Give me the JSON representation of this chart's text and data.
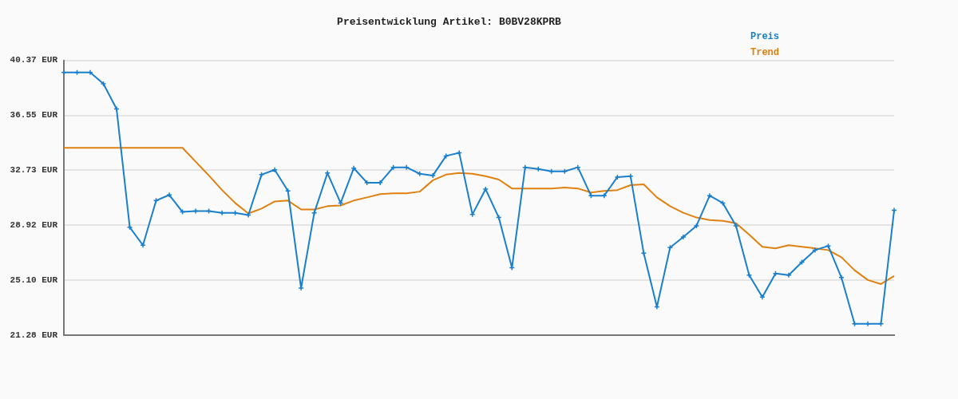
{
  "chart_data": {
    "type": "line",
    "title": "Preisentwicklung Artikel: B0BV28KPRB",
    "categories": [
      null,
      null,
      null,
      null,
      null,
      null,
      null,
      null,
      null,
      null,
      null,
      null,
      null,
      null,
      null,
      null,
      null,
      null,
      null,
      null,
      null,
      null,
      null,
      null,
      null,
      null,
      null,
      null,
      null,
      null,
      null,
      null,
      null,
      null,
      null,
      null,
      null,
      null,
      null,
      null,
      null,
      null,
      null,
      null,
      null,
      null,
      null,
      null,
      null,
      null,
      null,
      null,
      null,
      null,
      null,
      null,
      null,
      null,
      null,
      null,
      null,
      null,
      null,
      null
    ],
    "series": [
      {
        "name": "Preis",
        "color": "#1a7fcc",
        "marker": "cross",
        "values": [
          39.53,
          39.53,
          39.53,
          38.74,
          36.99,
          28.77,
          27.53,
          30.63,
          31.02,
          29.84,
          29.9,
          29.9,
          29.78,
          29.78,
          29.62,
          32.43,
          32.77,
          31.3,
          24.55,
          29.78,
          32.54,
          30.46,
          32.88,
          31.87,
          31.87,
          32.94,
          32.94,
          32.49,
          32.37,
          33.73,
          33.95,
          29.67,
          31.42,
          29.45,
          25.96,
          32.94,
          32.82,
          32.66,
          32.66,
          32.94,
          30.97,
          30.97,
          32.26,
          32.32,
          26.97,
          23.25,
          27.36,
          28.1,
          28.88,
          30.97,
          30.46,
          28.88,
          25.45,
          23.93,
          25.56,
          25.45,
          26.35,
          27.19,
          27.48,
          25.28,
          22.07,
          22.07,
          22.07,
          29.95
        ]
      },
      {
        "name": "Trend",
        "color": "#e08010",
        "marker": "none",
        "values": [
          34.29,
          34.29,
          34.29,
          34.29,
          34.29,
          34.29,
          34.29,
          34.29,
          34.29,
          34.29,
          33.33,
          32.37,
          31.36,
          30.46,
          29.73,
          30.07,
          30.57,
          30.63,
          30.01,
          30.01,
          30.24,
          30.29,
          30.63,
          30.85,
          31.08,
          31.13,
          31.13,
          31.25,
          32.04,
          32.43,
          32.54,
          32.49,
          32.32,
          32.09,
          31.47,
          31.47,
          31.47,
          31.47,
          31.53,
          31.47,
          31.19,
          31.3,
          31.36,
          31.7,
          31.76,
          30.85,
          30.24,
          29.78,
          29.45,
          29.28,
          29.22,
          29.05,
          28.26,
          27.42,
          27.31,
          27.53,
          27.42,
          27.31,
          27.19,
          26.69,
          25.79,
          25.11,
          24.83,
          25.39
        ]
      }
    ],
    "ylim": [
      21.28,
      40.37
    ],
    "yticks": [
      {
        "value": 21.28,
        "label": "21.28 EUR"
      },
      {
        "value": 25.1,
        "label": "25.10 EUR"
      },
      {
        "value": 28.92,
        "label": "28.92 EUR"
      },
      {
        "value": 32.73,
        "label": "32.73 EUR"
      },
      {
        "value": 36.55,
        "label": "36.55 EUR"
      },
      {
        "value": 40.37,
        "label": "40.37 EUR"
      }
    ],
    "grid": "y",
    "legend": "top right",
    "tick_labels": "y",
    "line_style": "solid"
  }
}
